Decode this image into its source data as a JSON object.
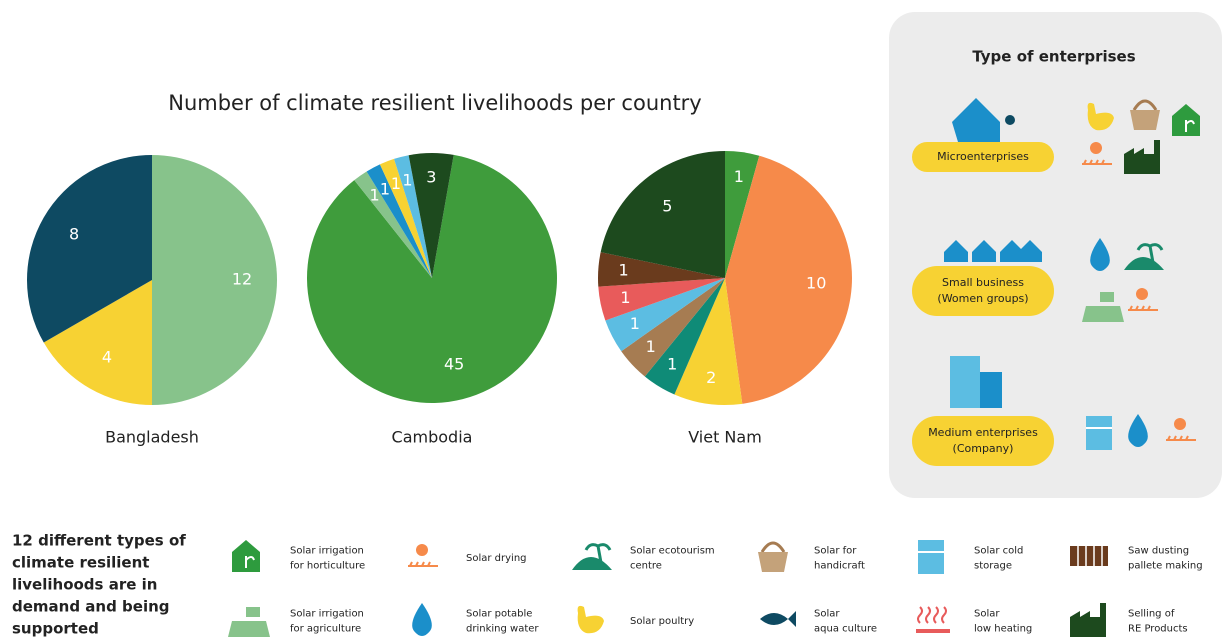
{
  "header": {
    "title": "Number of climate resilient livelihoods per country"
  },
  "chart_data": [
    {
      "type": "pie",
      "title": "Bangladesh",
      "values": [
        12,
        4,
        8
      ],
      "colors": [
        "#87c38b",
        "#f7d233",
        "#0e4a62"
      ]
    },
    {
      "type": "pie",
      "title": "Cambodia",
      "values": [
        45,
        1,
        1,
        1,
        1,
        3
      ],
      "colors": [
        "#3f9c3c",
        "#87c38b",
        "#1b8fca",
        "#f7d233",
        "#5cbde2",
        "#1d4a1e"
      ]
    },
    {
      "type": "pie",
      "title": "Viet Nam",
      "values": [
        1,
        10,
        2,
        1,
        1,
        1,
        1,
        1,
        5
      ],
      "colors": [
        "#3f9c3c",
        "#f68a4a",
        "#f7d233",
        "#0f8b77",
        "#a67c52",
        "#5cbde2",
        "#e85b5b",
        "#6a3b1d",
        "#1d4a1e"
      ]
    }
  ],
  "panel": {
    "title": "Type of enterprises",
    "groups": [
      [
        "Microenterprises"
      ],
      [
        "Small business",
        "(Women groups)"
      ],
      [
        "Medium enterprises",
        "(Company)"
      ]
    ]
  },
  "legend": {
    "heading": [
      "12 different types of",
      "climate resilient",
      "livelihoods are in",
      "demand and being",
      "supported"
    ],
    "items": [
      [
        "Solar irrigation",
        "for horticulture"
      ],
      [
        "Solar drying"
      ],
      [
        "Solar ecotourism",
        "centre"
      ],
      [
        "Solar for",
        "handicraft"
      ],
      [
        "Solar cold",
        "storage"
      ],
      [
        "Saw dusting",
        "pallete making"
      ],
      [
        "Solar irrigation",
        "for agriculture"
      ],
      [
        "Solar potable",
        "drinking water"
      ],
      [
        "Solar poultry"
      ],
      [
        "Solar",
        "aqua culture"
      ],
      [
        "Solar",
        "low heating"
      ],
      [
        "Selling of",
        "RE Products"
      ]
    ]
  }
}
